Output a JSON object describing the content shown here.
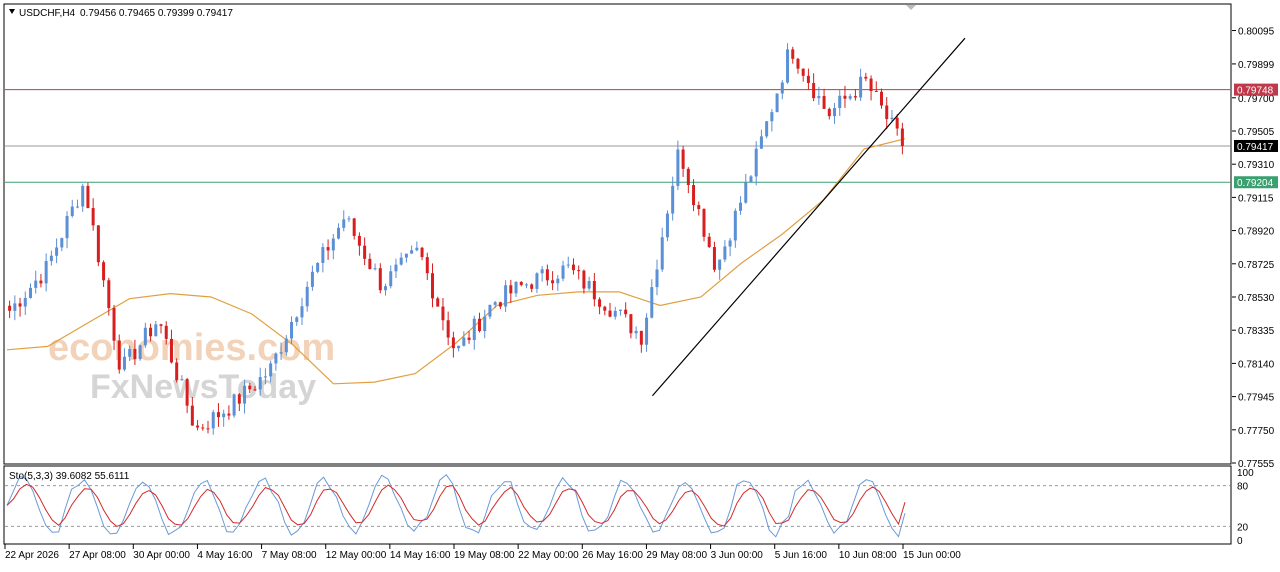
{
  "header": {
    "arrow_icon": "triangle-down-icon",
    "symbol": "USDCHF,H4",
    "ohlc": "0.79456 0.79465 0.79399 0.79417"
  },
  "indicator": {
    "label": "Sto(5,3,3) 39.6082 55.6111"
  },
  "watermark": {
    "line1": "economies.com",
    "line2": "FxNewsToday"
  },
  "colors": {
    "bull": "#5b8fd6",
    "bear": "#d81e1e",
    "ma": "#e0a040",
    "resistance": "#c0394b",
    "support": "#3aa070",
    "current": "#000000",
    "trendline": "#000000",
    "stoch_main": "#6a9ad8",
    "stoch_signal": "#d42a2a"
  },
  "chart_data": [
    {
      "type": "candlestick",
      "symbol": "USDCHF",
      "timeframe": "H4",
      "y_ticks": [
        "0.80095",
        "0.79899",
        "0.79700",
        "0.79505",
        "0.79310",
        "0.79115",
        "0.78920",
        "0.78725",
        "0.78530",
        "0.78335",
        "0.78140",
        "0.77945",
        "0.77750",
        "0.77555"
      ],
      "ylim": [
        0.77555,
        0.80245
      ],
      "x_ticks": [
        "22 Apr 2026",
        "27 Apr 08:00",
        "30 Apr 00:00",
        "4 May 16:00",
        "7 May 08:00",
        "12 May 00:00",
        "14 May 16:00",
        "19 May 08:00",
        "22 May 00:00",
        "26 May 16:00",
        "29 May 08:00",
        "3 Jun 00:00",
        "5 Jun 16:00",
        "10 Jun 08:00",
        "15 Jun 00:00"
      ],
      "levels": [
        {
          "name": "resistance",
          "value": 0.79748,
          "label": "0.79748"
        },
        {
          "name": "current",
          "value": 0.79417,
          "label": "0.79417"
        },
        {
          "name": "support",
          "value": 0.79204,
          "label": "0.79204"
        }
      ],
      "trendline": {
        "from": {
          "x": "29 May 08:00",
          "y": 0.7795
        },
        "to": {
          "x": "15 Jun 00:00",
          "y": 0.8005
        }
      },
      "moving_average_points": [
        0.7822,
        0.7824,
        0.7838,
        0.7852,
        0.7855,
        0.7853,
        0.7843,
        0.7825,
        0.7802,
        0.7803,
        0.7808,
        0.7826,
        0.7848,
        0.7854,
        0.7856,
        0.7856,
        0.7848,
        0.7853,
        0.7873,
        0.789,
        0.791,
        0.794,
        0.7946
      ],
      "anchor_closes": [
        0.7845,
        0.787,
        0.792,
        0.781,
        0.784,
        0.7775,
        0.779,
        0.781,
        0.786,
        0.79,
        0.786,
        0.788,
        0.782,
        0.785,
        0.7862,
        0.787,
        0.785,
        0.783,
        0.794,
        0.787,
        0.793,
        0.8,
        0.796,
        0.798,
        0.7942
      ]
    },
    {
      "type": "line",
      "name": "Sto(5,3,3)",
      "main": 39.6082,
      "signal": 55.6111,
      "y_ticks": [
        "100",
        "80",
        "20",
        "0"
      ],
      "levels": [
        80,
        20
      ],
      "ylim": [
        0,
        100
      ]
    }
  ]
}
